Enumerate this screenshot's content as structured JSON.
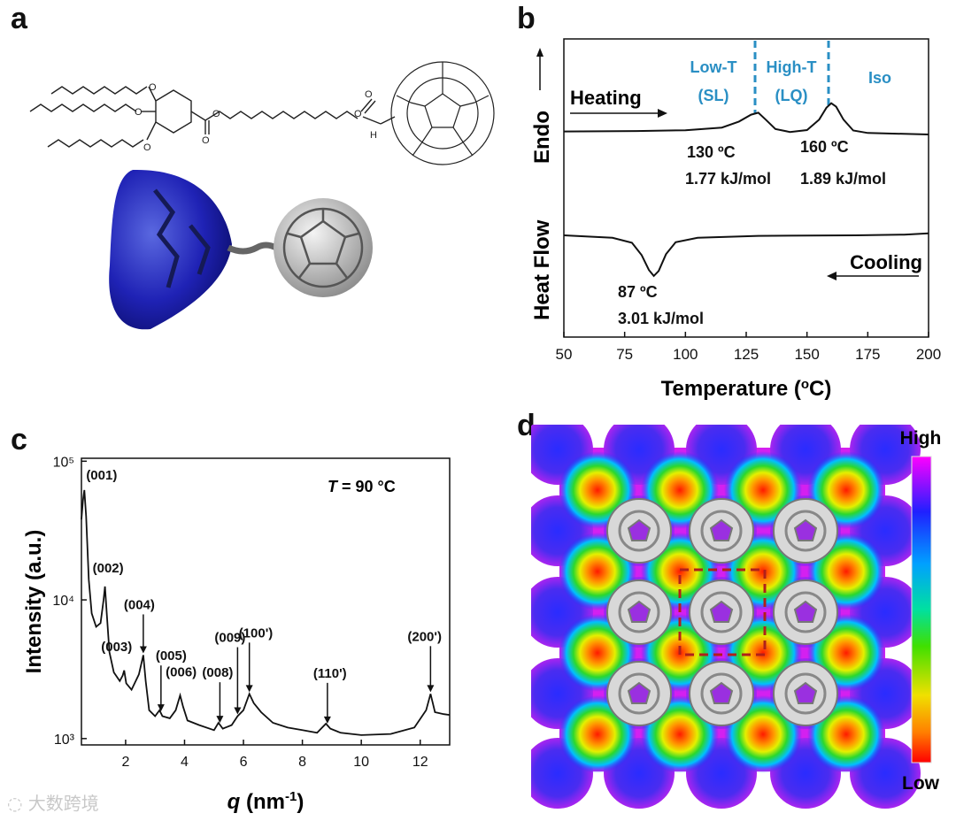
{
  "panels": {
    "a": {
      "letter": "a"
    },
    "b": {
      "letter": "b",
      "ylabel_top": "Endo",
      "ylabel_bottom": "Heat Flow",
      "heating_label": "Heating",
      "cooling_label": "Cooling",
      "phase_labels": [
        {
          "line1": "Low-T",
          "line2": "(SL)"
        },
        {
          "line1": "High-T",
          "line2": "(LQ)"
        },
        {
          "line1": "Iso",
          "line2": ""
        }
      ],
      "peak_annotations": [
        {
          "temp": "130 ºC",
          "enthalpy": "1.77 kJ/mol"
        },
        {
          "temp": "160 ºC",
          "enthalpy": "1.89 kJ/mol"
        },
        {
          "temp": "87 ºC",
          "enthalpy": "3.01 kJ/mol"
        }
      ],
      "phase_color": "#2a8fc4"
    },
    "c": {
      "letter": "c",
      "annotation_T": "T",
      "annotation_rest": " = 90 °C"
    },
    "d": {
      "letter": "d",
      "colorbar_high": "High",
      "colorbar_low": "Low"
    }
  },
  "chart_data": [
    {
      "type": "line",
      "panel": "b",
      "xlabel": "Temperature (oC)",
      "xlim": [
        50,
        200
      ],
      "xticks": [
        50,
        75,
        100,
        125,
        150,
        175,
        200
      ],
      "series": [
        {
          "values": [
            [
              50,
              0.6
            ],
            [
              80,
              0.7
            ],
            [
              100,
              0.85
            ],
            [
              115,
              1.4
            ],
            [
              122,
              2.6
            ],
            [
              127,
              4.0
            ],
            [
              130,
              4.4
            ],
            [
              133,
              3.0
            ],
            [
              137,
              1.1
            ],
            [
              143,
              0.5
            ],
            [
              150,
              0.9
            ],
            [
              155,
              3.0
            ],
            [
              158,
              5.4
            ],
            [
              160,
              6.3
            ],
            [
              162,
              5.6
            ],
            [
              165,
              3.0
            ],
            [
              169,
              0.8
            ],
            [
              175,
              0.3
            ],
            [
              200,
              0.0
            ]
          ]
        },
        {
          "values": [
            [
              50,
              0.0
            ],
            [
              70,
              -0.5
            ],
            [
              78,
              -1.5
            ],
            [
              82,
              -4.0
            ],
            [
              85,
              -7.0
            ],
            [
              87,
              -8.2
            ],
            [
              89,
              -7.2
            ],
            [
              92,
              -3.8
            ],
            [
              96,
              -1.4
            ],
            [
              105,
              -0.5
            ],
            [
              130,
              -0.1
            ],
            [
              170,
              0.0
            ],
            [
              190,
              0.15
            ],
            [
              200,
              0.4
            ]
          ]
        }
      ],
      "phase_boundaries": [
        130,
        160
      ]
    },
    {
      "type": "line",
      "panel": "c",
      "xlabel": "q (nm-1)",
      "ylabel": "Intensity (a.u.)",
      "xlim": [
        0.5,
        13
      ],
      "ylim": [
        900,
        105000
      ],
      "yscale": "log",
      "xticks": [
        2,
        4,
        6,
        8,
        10,
        12
      ],
      "yticks": [
        1000,
        10000,
        100000
      ],
      "ytick_labels": [
        "10³",
        "10⁴",
        "10⁵"
      ],
      "series": [
        {
          "values": [
            [
              0.5,
              38000
            ],
            [
              0.55,
              52000
            ],
            [
              0.6,
              62000
            ],
            [
              0.66,
              40000
            ],
            [
              0.75,
              14000
            ],
            [
              0.85,
              8000
            ],
            [
              1.0,
              6400
            ],
            [
              1.15,
              6800
            ],
            [
              1.25,
              10000
            ],
            [
              1.3,
              12500
            ],
            [
              1.36,
              8000
            ],
            [
              1.45,
              4200
            ],
            [
              1.6,
              3000
            ],
            [
              1.8,
              2600
            ],
            [
              1.9,
              2850
            ],
            [
              1.95,
              3100
            ],
            [
              2.02,
              2500
            ],
            [
              2.2,
              2250
            ],
            [
              2.45,
              2900
            ],
            [
              2.6,
              4000
            ],
            [
              2.68,
              2600
            ],
            [
              2.8,
              1600
            ],
            [
              3.0,
              1450
            ],
            [
              3.15,
              1600
            ],
            [
              3.25,
              1450
            ],
            [
              3.5,
              1400
            ],
            [
              3.7,
              1600
            ],
            [
              3.85,
              2050
            ],
            [
              3.95,
              1700
            ],
            [
              4.1,
              1350
            ],
            [
              4.5,
              1250
            ],
            [
              5.0,
              1150
            ],
            [
              5.15,
              1300
            ],
            [
              5.3,
              1180
            ],
            [
              5.6,
              1250
            ],
            [
              5.8,
              1450
            ],
            [
              6.0,
              1600
            ],
            [
              6.2,
              2100
            ],
            [
              6.35,
              1800
            ],
            [
              6.6,
              1550
            ],
            [
              7.0,
              1300
            ],
            [
              7.5,
              1200
            ],
            [
              8.0,
              1150
            ],
            [
              8.5,
              1100
            ],
            [
              8.8,
              1280
            ],
            [
              8.95,
              1180
            ],
            [
              9.3,
              1100
            ],
            [
              10.0,
              1060
            ],
            [
              11.0,
              1080
            ],
            [
              11.8,
              1200
            ],
            [
              12.2,
              1600
            ],
            [
              12.35,
              2100
            ],
            [
              12.5,
              1550
            ],
            [
              12.8,
              1500
            ],
            [
              13.0,
              1480
            ]
          ]
        }
      ],
      "peak_labels": [
        {
          "label": "(001)",
          "q": 0.6
        },
        {
          "label": "(002)",
          "q": 1.3
        },
        {
          "label": "(003)",
          "q": 1.95
        },
        {
          "label": "(004)",
          "q": 2.6
        },
        {
          "label": "(005)",
          "q": 3.2
        },
        {
          "label": "(006)",
          "q": 3.9
        },
        {
          "label": "(008)",
          "q": 5.2
        },
        {
          "label": "(009)",
          "q": 5.8
        },
        {
          "label": "(100')",
          "q": 6.2
        },
        {
          "label": "(110')",
          "q": 8.85
        },
        {
          "label": "(200')",
          "q": 12.35
        }
      ]
    }
  ]
}
